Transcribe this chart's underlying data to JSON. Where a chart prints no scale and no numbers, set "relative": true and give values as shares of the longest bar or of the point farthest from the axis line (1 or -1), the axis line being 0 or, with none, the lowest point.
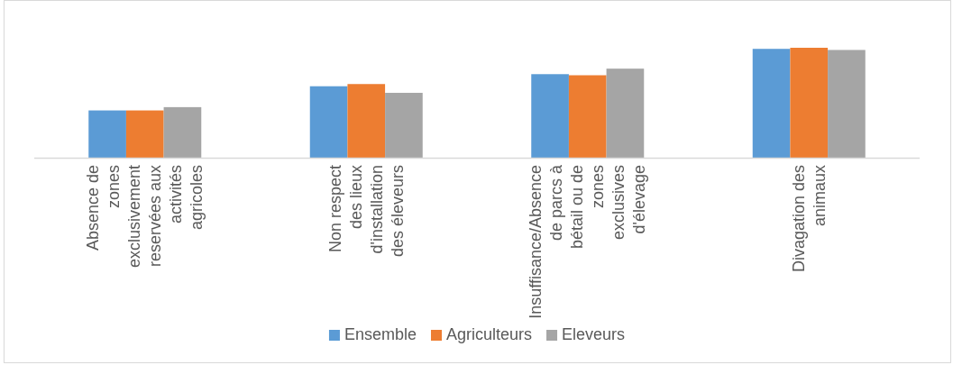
{
  "chart_data": {
    "type": "bar",
    "relative": true,
    "legend": "bottom",
    "categories": [
      "Absence de zones exclusivement reservées aux activités agricoles",
      "Non respect des lieux d'installation des éleveurs",
      "Insuffisance/Absence de parcs à bétail ou de zones exclusives d'élevage",
      "Divagation des animaux"
    ],
    "series": [
      {
        "name": "Ensemble",
        "color": "#5b9bd5",
        "values": [
          0.43,
          0.65,
          0.76,
          0.99
        ]
      },
      {
        "name": "Agriculteurs",
        "color": "#ed7d31",
        "values": [
          0.43,
          0.67,
          0.75,
          1
        ]
      },
      {
        "name": "Eleveurs",
        "color": "#a5a5a5",
        "values": [
          0.46,
          0.59,
          0.81,
          0.98
        ]
      }
    ]
  }
}
